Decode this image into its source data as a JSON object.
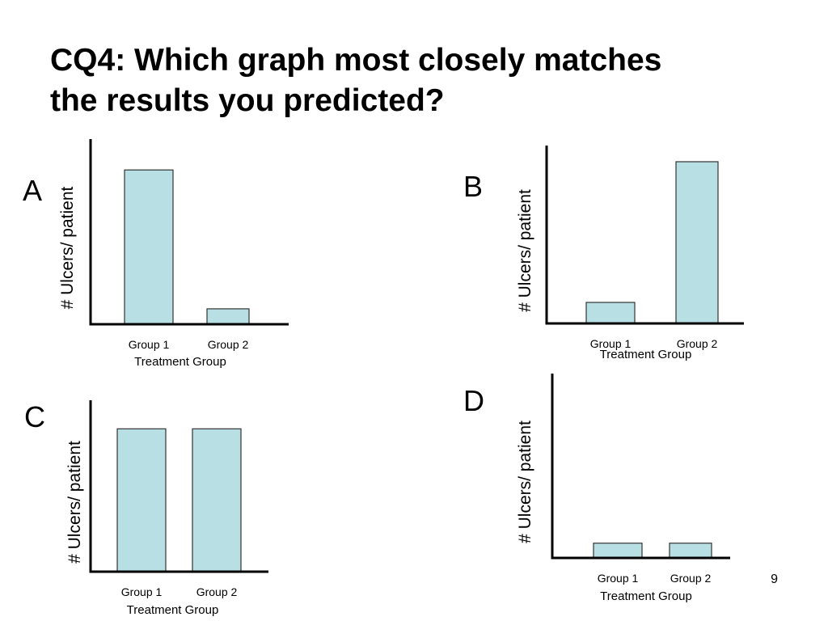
{
  "slide": {
    "title_line1": "CQ4: Which graph most closely matches",
    "title_line2": "the results you predicted?",
    "page_number": "9"
  },
  "colors": {
    "bar_fill": "#b8dfe3",
    "bar_stroke": "#333333",
    "axis": "#000000"
  },
  "chart_data": [
    {
      "id": "A",
      "type": "bar",
      "panel_label": "A",
      "categories": [
        "Group 1",
        "Group 2"
      ],
      "values": [
        1.0,
        0.1
      ],
      "ylim": [
        0,
        1.2
      ],
      "xlabel": "Treatment Group",
      "ylabel": "# Ulcers/ patient"
    },
    {
      "id": "B",
      "type": "bar",
      "panel_label": "B",
      "categories": [
        "Group 1",
        "Group 2"
      ],
      "values": [
        0.13,
        1.0
      ],
      "ylim": [
        0,
        1.1
      ],
      "xlabel": "Treatment Group",
      "ylabel": "# Ulcers/ patient"
    },
    {
      "id": "C",
      "type": "bar",
      "panel_label": "C",
      "categories": [
        "Group 1",
        "Group 2"
      ],
      "values": [
        1.0,
        1.0
      ],
      "ylim": [
        0,
        1.2
      ],
      "xlabel": "Treatment Group",
      "ylabel": "# Ulcers/ patient"
    },
    {
      "id": "D",
      "type": "bar",
      "panel_label": "D",
      "categories": [
        "Group 1",
        "Group 2"
      ],
      "values": [
        0.12,
        0.12
      ],
      "ylim": [
        0,
        1.5
      ],
      "xlabel": "Treatment Group",
      "ylabel": "# Ulcers/ patient"
    }
  ]
}
